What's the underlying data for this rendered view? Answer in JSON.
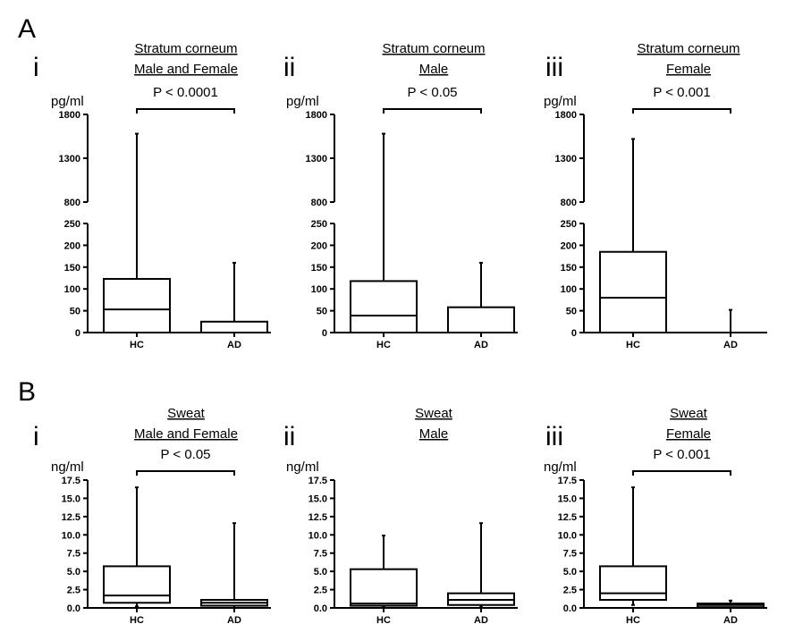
{
  "figure": {
    "sections": [
      {
        "letter": "A"
      },
      {
        "letter": "B"
      }
    ]
  },
  "chart_data": [
    {
      "type": "box",
      "panel": "A",
      "subpanel": "i",
      "title_lines": [
        "Stratum corneum",
        "Male and Female"
      ],
      "ylabel": "pg/ml",
      "pvalue": "P < 0.0001",
      "broken_axis": true,
      "lower_range": [
        0,
        250
      ],
      "lower_ticks": [
        "0",
        "50",
        "100",
        "150",
        "200",
        "250"
      ],
      "upper_range": [
        800,
        1800
      ],
      "upper_ticks": [
        "800",
        "1300",
        "1800"
      ],
      "categories": [
        "HC",
        "AD"
      ],
      "boxes": [
        {
          "min": 0,
          "q1": 0,
          "median": 53,
          "q3": 123,
          "max": 1580
        },
        {
          "min": 0,
          "q1": 0,
          "median": 0,
          "q3": 25,
          "max": 160
        }
      ]
    },
    {
      "type": "box",
      "panel": "A",
      "subpanel": "ii",
      "title_lines": [
        "Stratum corneum",
        "Male"
      ],
      "ylabel": "pg/ml",
      "pvalue": "P < 0.05",
      "broken_axis": true,
      "lower_range": [
        0,
        250
      ],
      "lower_ticks": [
        "0",
        "50",
        "100",
        "150",
        "200",
        "250"
      ],
      "upper_range": [
        800,
        1800
      ],
      "upper_ticks": [
        "800",
        "1300",
        "1800"
      ],
      "categories": [
        "HC",
        "AD"
      ],
      "boxes": [
        {
          "min": 0,
          "q1": 0,
          "median": 39,
          "q3": 118,
          "max": 1580
        },
        {
          "min": 0,
          "q1": 0,
          "median": 0,
          "q3": 58,
          "max": 160
        }
      ]
    },
    {
      "type": "box",
      "panel": "A",
      "subpanel": "iii",
      "title_lines": [
        "Stratum corneum",
        "Female"
      ],
      "ylabel": "pg/ml",
      "pvalue": "P < 0.001",
      "broken_axis": true,
      "lower_range": [
        0,
        250
      ],
      "lower_ticks": [
        "0",
        "50",
        "100",
        "150",
        "200",
        "250"
      ],
      "upper_range": [
        800,
        1800
      ],
      "upper_ticks": [
        "800",
        "1300",
        "1800"
      ],
      "categories": [
        "HC",
        "AD"
      ],
      "boxes": [
        {
          "min": 0,
          "q1": 0,
          "median": 80,
          "q3": 185,
          "max": 1520
        },
        {
          "min": 0,
          "q1": 0,
          "median": 0,
          "q3": 0,
          "max": 52
        }
      ]
    },
    {
      "type": "box",
      "panel": "B",
      "subpanel": "i",
      "title_lines": [
        "Sweat",
        "Male and Female"
      ],
      "ylabel": "ng/ml",
      "pvalue": "P < 0.05",
      "broken_axis": false,
      "ylim": [
        0,
        17.5
      ],
      "ticks": [
        "0.0",
        "2.5",
        "5.0",
        "7.5",
        "10.0",
        "12.5",
        "15.0",
        "17.5"
      ],
      "categories": [
        "HC",
        "AD"
      ],
      "boxes": [
        {
          "min": 0.2,
          "q1": 0.7,
          "median": 1.7,
          "q3": 5.7,
          "max": 16.5
        },
        {
          "min": 0.0,
          "q1": 0.3,
          "median": 0.7,
          "q3": 1.1,
          "max": 11.6
        }
      ]
    },
    {
      "type": "box",
      "panel": "B",
      "subpanel": "ii",
      "title_lines": [
        "Sweat",
        "Male"
      ],
      "ylabel": "ng/ml",
      "pvalue": "",
      "broken_axis": false,
      "ylim": [
        0,
        17.5
      ],
      "ticks": [
        "0.0",
        "2.5",
        "5.0",
        "7.5",
        "10.0",
        "12.5",
        "15.0",
        "17.5"
      ],
      "categories": [
        "HC",
        "AD"
      ],
      "boxes": [
        {
          "min": 0.1,
          "q1": 0.3,
          "median": 0.6,
          "q3": 5.3,
          "max": 9.9
        },
        {
          "min": 0.1,
          "q1": 0.4,
          "median": 1.1,
          "q3": 2.0,
          "max": 11.6
        }
      ]
    },
    {
      "type": "box",
      "panel": "B",
      "subpanel": "iii",
      "title_lines": [
        "Sweat",
        "Female"
      ],
      "ylabel": "ng/ml",
      "pvalue": "P < 0.001",
      "broken_axis": false,
      "ylim": [
        0,
        17.5
      ],
      "ticks": [
        "0.0",
        "2.5",
        "5.0",
        "7.5",
        "10.0",
        "12.5",
        "15.0",
        "17.5"
      ],
      "categories": [
        "HC",
        "AD"
      ],
      "boxes": [
        {
          "min": 0.4,
          "q1": 1.1,
          "median": 2.0,
          "q3": 5.7,
          "max": 16.5
        },
        {
          "min": 0.0,
          "q1": 0.1,
          "median": 0.4,
          "q3": 0.6,
          "max": 1.0
        }
      ]
    }
  ]
}
